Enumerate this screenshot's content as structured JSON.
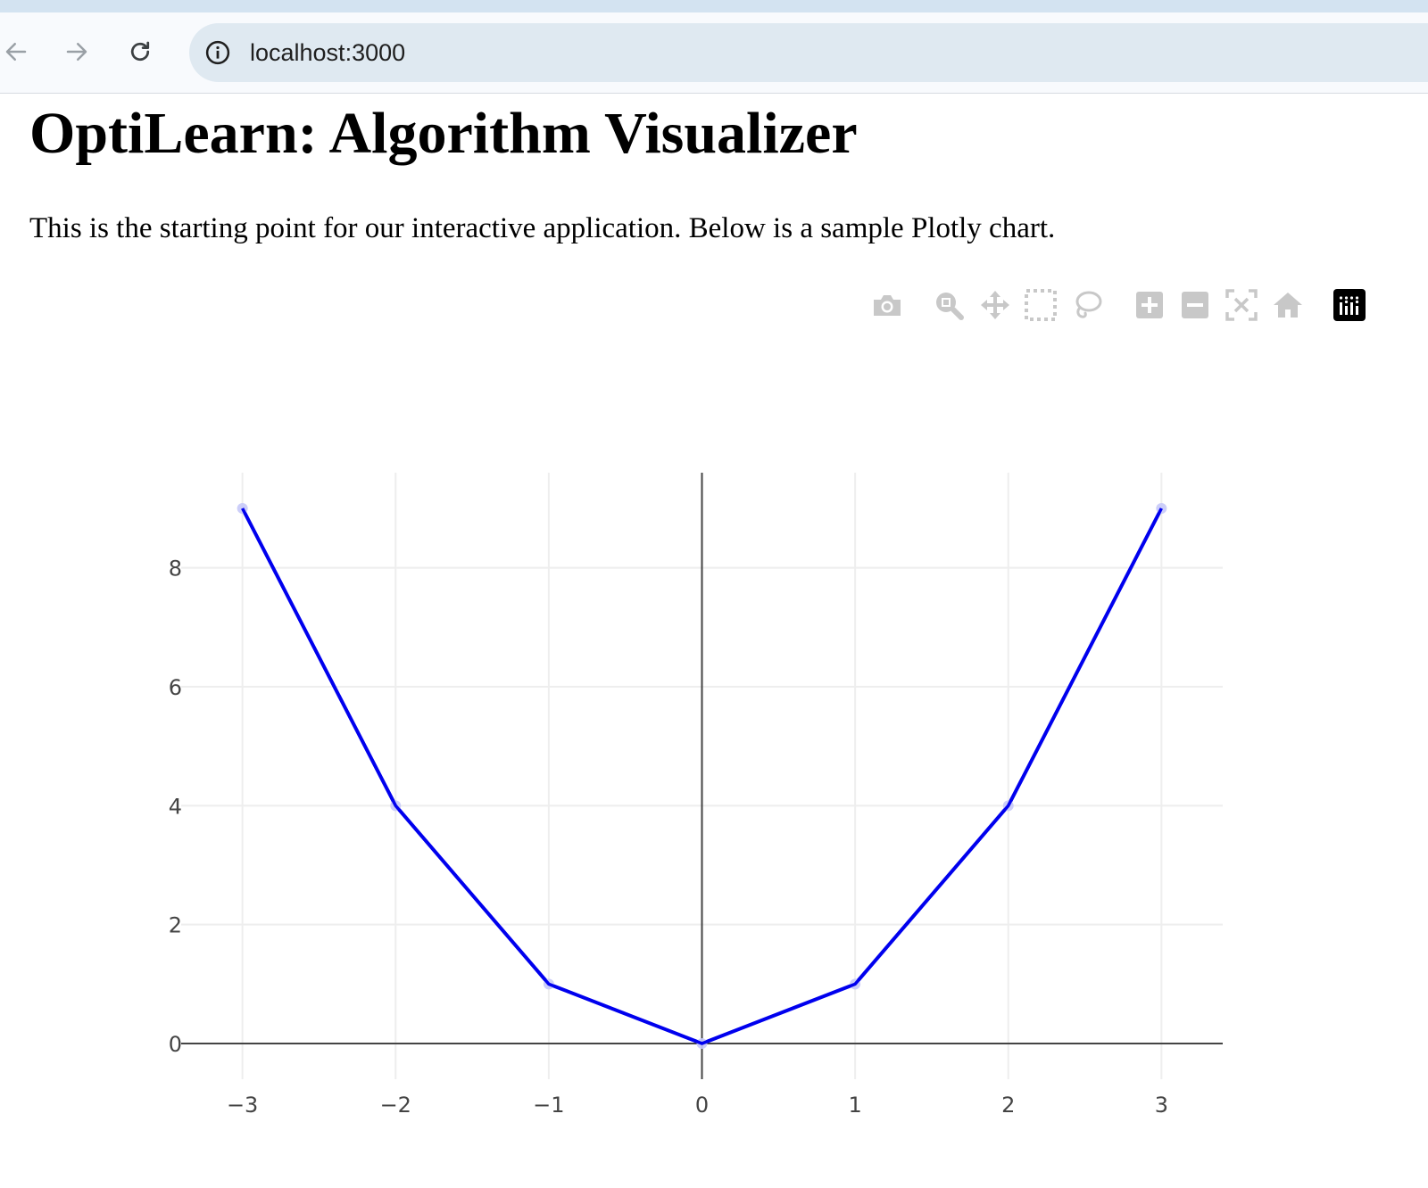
{
  "browser": {
    "url": "localhost:3000",
    "icons": {
      "back": "arrow-left-icon",
      "forward": "arrow-right-icon",
      "reload": "reload-icon",
      "site_info": "info-circle-icon"
    }
  },
  "page": {
    "title": "OptiLearn: Algorithm Visualizer",
    "intro": "This is the starting point for our interactive application. Below is a sample Plotly chart."
  },
  "modebar": {
    "buttons": [
      "camera-icon",
      "zoom-icon",
      "pan-icon",
      "box-select-icon",
      "lasso-select-icon",
      "zoom-in-icon",
      "zoom-out-icon",
      "autoscale-icon",
      "reset-axes-icon",
      "plotly-logo-icon"
    ],
    "icon_color": "#c8c8c8"
  },
  "chart_data": {
    "type": "line",
    "mode": "lines+markers",
    "x": [
      -3,
      -2,
      -1,
      0,
      1,
      2,
      3
    ],
    "y": [
      9,
      4,
      1,
      0,
      1,
      4,
      9
    ],
    "x_ticks": [
      -3,
      -2,
      -1,
      0,
      1,
      2,
      3
    ],
    "y_ticks": [
      0,
      2,
      4,
      6,
      8
    ],
    "x_tick_labels": [
      "−3",
      "−2",
      "−1",
      "0",
      "1",
      "2",
      "3"
    ],
    "y_tick_labels": [
      "0",
      "2",
      "4",
      "6",
      "8"
    ],
    "xlim": [
      -3.4,
      3.4
    ],
    "ylim": [
      -0.6,
      9.6
    ],
    "grid": true,
    "zero_lines": true,
    "line_color": "#0000ee",
    "marker_color": "#c7c9f8",
    "title": "",
    "xlabel": "",
    "ylabel": ""
  }
}
